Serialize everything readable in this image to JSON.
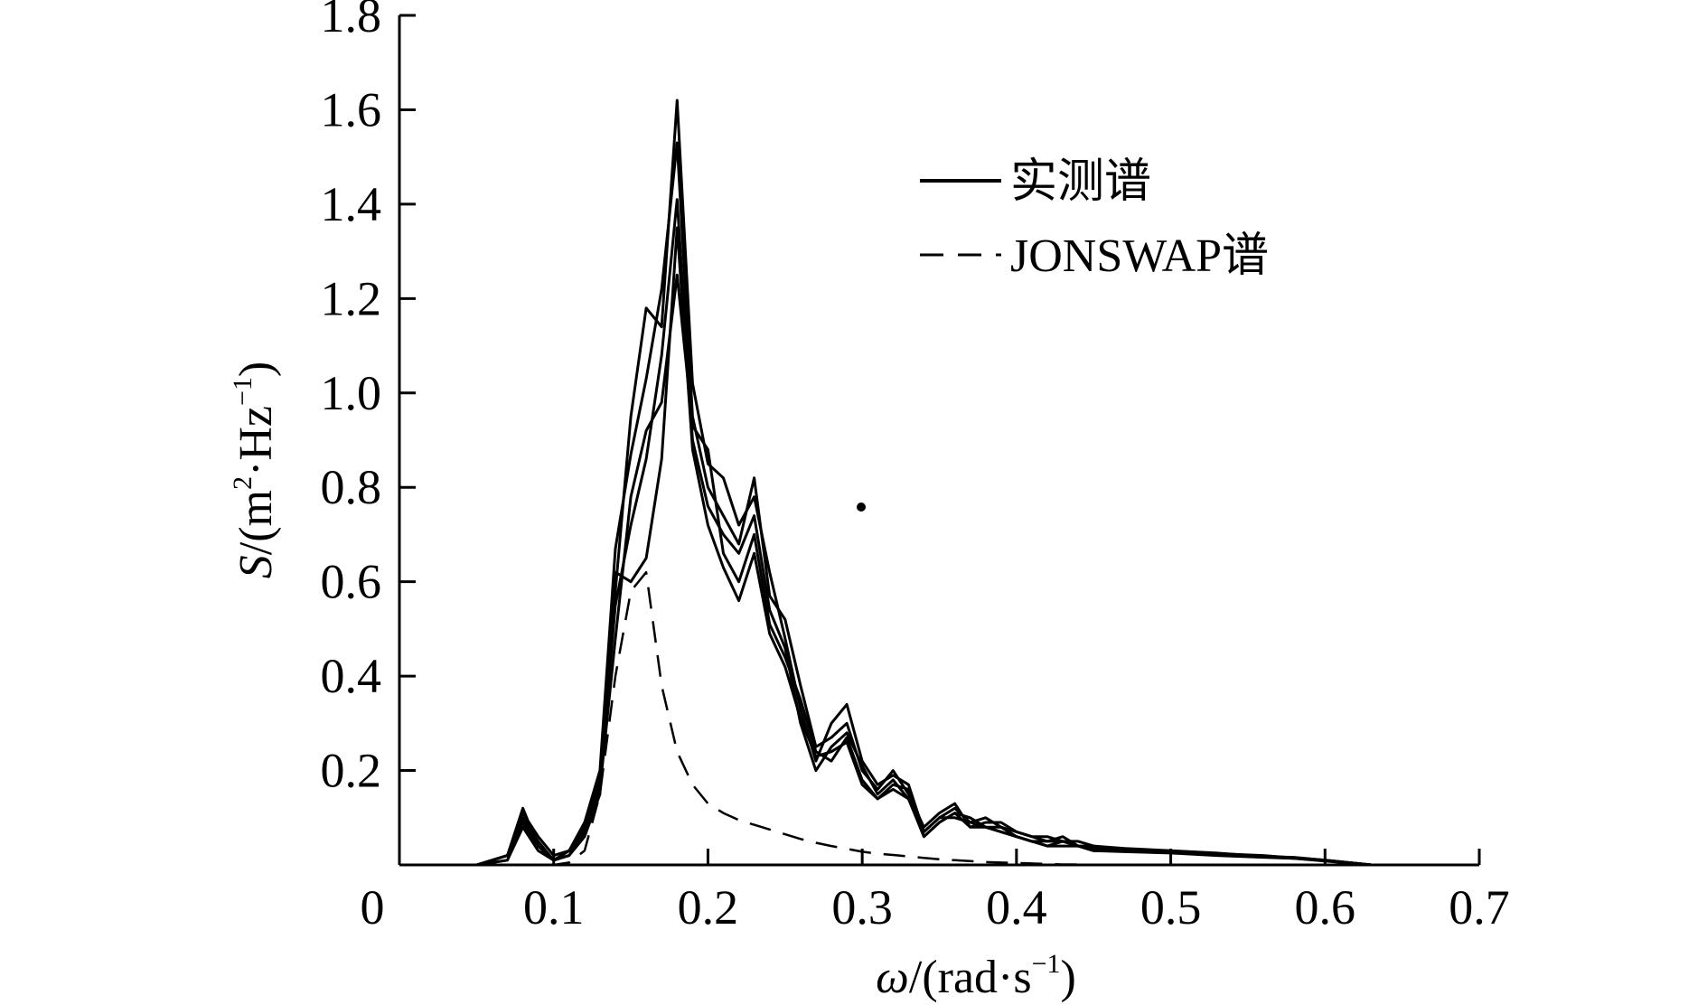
{
  "chart_data": {
    "type": "line",
    "title": "",
    "xlabel": {
      "symbol": "ω",
      "text": "/(rad·s",
      "sup": "−1",
      "close": ")"
    },
    "ylabel": {
      "symbol": "S",
      "text1": "/(m",
      "sup1": "2",
      "text2": "·Hz",
      "sup2": "−1",
      "close": ")"
    },
    "xlim": [
      0,
      0.7
    ],
    "ylim": [
      0,
      1.8
    ],
    "xticks": [
      0,
      0.1,
      0.2,
      0.3,
      0.4,
      0.5,
      0.6,
      0.7
    ],
    "xtick_labels": [
      "0",
      "0.1",
      "0.2",
      "0.3",
      "0.4",
      "0.5",
      "0.6",
      "0.7"
    ],
    "yticks": [
      0.2,
      0.4,
      0.6,
      0.8,
      1.0,
      1.2,
      1.4,
      1.6,
      1.8
    ],
    "ytick_labels": [
      "0.2",
      "0.4",
      "0.6",
      "0.8",
      "1.0",
      "1.2",
      "1.4",
      "1.6",
      "1.8"
    ],
    "grid": false,
    "legend_position": "top-right",
    "legend": [
      {
        "label": "实测谱",
        "style": "solid"
      },
      {
        "label": "JONSWAP谱",
        "style": "dashed"
      }
    ],
    "colors": {
      "line": "#000000",
      "background": "#ffffff"
    },
    "x": [
      0.03,
      0.05,
      0.07,
      0.08,
      0.09,
      0.1,
      0.11,
      0.12,
      0.13,
      0.14,
      0.15,
      0.16,
      0.17,
      0.18,
      0.19,
      0.2,
      0.21,
      0.22,
      0.23,
      0.24,
      0.25,
      0.26,
      0.27,
      0.28,
      0.29,
      0.3,
      0.31,
      0.32,
      0.33,
      0.34,
      0.35,
      0.36,
      0.37,
      0.38,
      0.39,
      0.4,
      0.41,
      0.42,
      0.43,
      0.44,
      0.45,
      0.47,
      0.5,
      0.53,
      0.56,
      0.58,
      0.6,
      0.63
    ],
    "series": [
      {
        "style": "solid",
        "values": [
          0.0,
          0.0,
          0.02,
          0.12,
          0.04,
          0.01,
          0.03,
          0.08,
          0.17,
          0.58,
          0.95,
          1.18,
          1.14,
          1.62,
          1.02,
          0.85,
          0.82,
          0.72,
          0.78,
          0.62,
          0.48,
          0.33,
          0.22,
          0.3,
          0.34,
          0.22,
          0.17,
          0.19,
          0.17,
          0.07,
          0.1,
          0.12,
          0.09,
          0.1,
          0.08,
          0.07,
          0.06,
          0.05,
          0.06,
          0.04,
          0.04,
          0.035,
          0.03,
          0.025,
          0.018,
          0.016,
          0.01,
          0.0
        ]
      },
      {
        "style": "solid",
        "values": [
          0.0,
          0.0,
          0.02,
          0.1,
          0.05,
          0.01,
          0.03,
          0.09,
          0.2,
          0.67,
          0.87,
          1.03,
          1.22,
          1.53,
          0.95,
          0.8,
          0.74,
          0.68,
          0.82,
          0.57,
          0.52,
          0.38,
          0.25,
          0.27,
          0.3,
          0.2,
          0.16,
          0.2,
          0.15,
          0.08,
          0.11,
          0.13,
          0.08,
          0.09,
          0.09,
          0.07,
          0.06,
          0.06,
          0.05,
          0.05,
          0.04,
          0.03,
          0.028,
          0.024,
          0.02,
          0.015,
          0.01,
          0.0
        ]
      },
      {
        "style": "solid",
        "values": [
          0.0,
          0.0,
          0.01,
          0.09,
          0.04,
          0.01,
          0.02,
          0.07,
          0.16,
          0.48,
          0.78,
          0.92,
          0.98,
          1.25,
          0.93,
          0.88,
          0.66,
          0.6,
          0.7,
          0.51,
          0.44,
          0.35,
          0.24,
          0.22,
          0.27,
          0.18,
          0.14,
          0.17,
          0.16,
          0.06,
          0.09,
          0.11,
          0.1,
          0.08,
          0.07,
          0.06,
          0.05,
          0.05,
          0.05,
          0.04,
          0.03,
          0.03,
          0.026,
          0.022,
          0.017,
          0.014,
          0.009,
          0.0
        ]
      },
      {
        "style": "solid",
        "values": [
          0.0,
          0.0,
          0.02,
          0.11,
          0.06,
          0.02,
          0.03,
          0.08,
          0.18,
          0.55,
          0.72,
          0.86,
          1.08,
          1.41,
          0.9,
          0.76,
          0.7,
          0.66,
          0.74,
          0.54,
          0.46,
          0.3,
          0.2,
          0.25,
          0.28,
          0.21,
          0.15,
          0.18,
          0.14,
          0.07,
          0.1,
          0.1,
          0.09,
          0.08,
          0.08,
          0.06,
          0.05,
          0.04,
          0.05,
          0.04,
          0.035,
          0.032,
          0.027,
          0.022,
          0.018,
          0.015,
          0.01,
          0.0
        ]
      },
      {
        "style": "solid",
        "values": [
          0.0,
          0.0,
          0.01,
          0.08,
          0.03,
          0.01,
          0.02,
          0.06,
          0.15,
          0.62,
          0.6,
          0.65,
          0.86,
          1.35,
          0.88,
          0.72,
          0.63,
          0.56,
          0.66,
          0.49,
          0.42,
          0.31,
          0.23,
          0.24,
          0.26,
          0.17,
          0.14,
          0.16,
          0.14,
          0.06,
          0.09,
          0.11,
          0.08,
          0.08,
          0.07,
          0.06,
          0.05,
          0.04,
          0.04,
          0.04,
          0.03,
          0.028,
          0.025,
          0.02,
          0.016,
          0.014,
          0.008,
          0.0
        ]
      },
      {
        "style": "dashed",
        "values": [
          0.0,
          0.0,
          0.0,
          0.0,
          0.0,
          0.0,
          0.005,
          0.03,
          0.15,
          0.4,
          0.58,
          0.62,
          0.38,
          0.24,
          0.17,
          0.13,
          0.11,
          0.095,
          0.085,
          0.075,
          0.065,
          0.055,
          0.047,
          0.04,
          0.034,
          0.028,
          0.024,
          0.021,
          0.018,
          0.015,
          0.012,
          0.01,
          0.008,
          0.006,
          0.005,
          0.004,
          0.003,
          0.002,
          0.001,
          0.001,
          0.0,
          0.0,
          0.0,
          0.0,
          0.0,
          0.0,
          0.0,
          0.0
        ]
      }
    ]
  }
}
